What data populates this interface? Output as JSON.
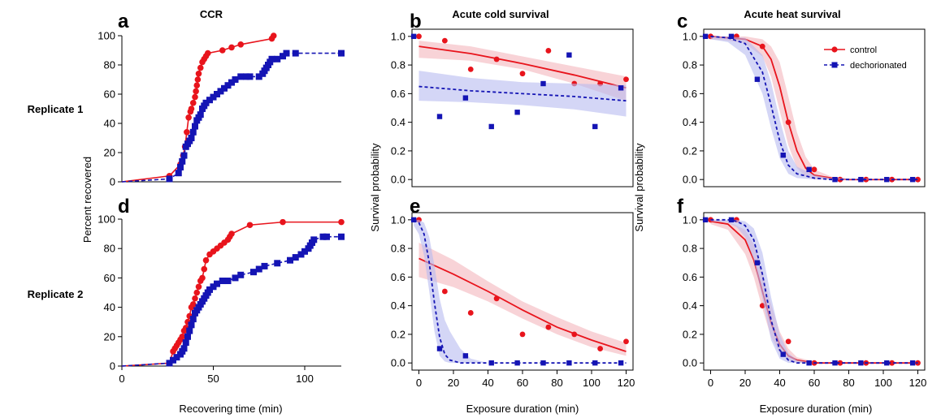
{
  "colors": {
    "control": "#e8141c",
    "dechorionated": "#1414b4",
    "control_band": "#f4b6bc",
    "dechorionated_band": "#b8bbf0"
  },
  "row_labels": [
    "Replicate 1",
    "Replicate 2"
  ],
  "shared_labels": {
    "ccr_ylabel": "Percent recovered",
    "ccr_xlabel": "Recovering time (min)",
    "surv_ylabel": "Survival probability",
    "surv_xlabel": "Exposure duration (min)"
  },
  "legend": {
    "placement": "top-right of panel c",
    "entries": [
      "control",
      "dechorionated"
    ]
  },
  "chart_data": [
    {
      "panel": "a",
      "type": "line",
      "title": "CCR",
      "xlabel": "",
      "ylabel": "Percent recovered",
      "xlim": [
        0,
        120
      ],
      "ylim": [
        0,
        100
      ],
      "xticks": [],
      "yticks": [
        0,
        20,
        40,
        60,
        80,
        100
      ],
      "series": [
        {
          "name": "control",
          "style": "solid",
          "x": [
            0,
            26,
            32,
            33.5,
            34.5,
            35.5,
            36.5,
            37.5,
            38,
            39,
            40,
            40.5,
            41,
            41.5,
            42,
            43,
            44,
            45,
            46,
            47,
            55,
            60,
            65,
            82,
            83
          ],
          "y": [
            0,
            4,
            12,
            18,
            24,
            34,
            44,
            48,
            50,
            54,
            58,
            62,
            66,
            70,
            74,
            78,
            82,
            84,
            86,
            88,
            90,
            92,
            94,
            98,
            100
          ]
        },
        {
          "name": "dechorionated",
          "style": "dashed",
          "x": [
            0,
            26,
            31,
            32,
            33,
            34,
            35,
            36,
            37,
            38,
            39,
            40,
            41,
            42,
            43,
            44,
            45,
            46,
            48,
            50,
            52,
            54,
            56,
            58,
            60,
            62,
            65,
            68,
            70,
            75,
            77,
            78,
            79,
            80,
            81,
            82,
            85,
            88,
            90,
            95,
            120
          ],
          "y": [
            0,
            2,
            6,
            10,
            14,
            18,
            24,
            26,
            28,
            30,
            34,
            38,
            42,
            44,
            46,
            50,
            52,
            54,
            56,
            58,
            60,
            62,
            64,
            66,
            68,
            70,
            72,
            72,
            72,
            72,
            74,
            76,
            78,
            80,
            82,
            84,
            84,
            86,
            88,
            88,
            88
          ]
        }
      ]
    },
    {
      "panel": "b",
      "type": "scatter",
      "title": "Acute cold survival",
      "xlabel": "",
      "ylabel": "",
      "xlim": [
        -4,
        124
      ],
      "ylim": [
        -0.05,
        1.05
      ],
      "xticks": [],
      "yticks": [
        0.0,
        0.2,
        0.4,
        0.6,
        0.8,
        1.0
      ],
      "series": [
        {
          "name": "control",
          "points_x": [
            0,
            15,
            30,
            45,
            60,
            75,
            90,
            105,
            120
          ],
          "points_y": [
            1.0,
            0.97,
            0.77,
            0.84,
            0.74,
            0.9,
            0.67,
            0.67,
            0.7
          ],
          "fit_x": [
            0,
            30,
            60,
            90,
            120
          ],
          "fit_y": [
            0.93,
            0.88,
            0.81,
            0.73,
            0.64
          ],
          "band_lo": [
            0.85,
            0.83,
            0.77,
            0.67,
            0.55
          ],
          "band_hi": [
            0.97,
            0.93,
            0.86,
            0.79,
            0.72
          ]
        },
        {
          "name": "dechorionated",
          "points_x": [
            -3,
            12,
            27,
            42,
            57,
            72,
            87,
            102,
            117
          ],
          "points_y": [
            1.0,
            0.44,
            0.57,
            0.37,
            0.47,
            0.67,
            0.87,
            0.37,
            0.64
          ],
          "fit_x": [
            0,
            30,
            60,
            90,
            120
          ],
          "fit_y": [
            0.65,
            0.62,
            0.6,
            0.58,
            0.55
          ],
          "band_lo": [
            0.55,
            0.54,
            0.52,
            0.49,
            0.44
          ],
          "band_hi": [
            0.76,
            0.71,
            0.68,
            0.67,
            0.66
          ]
        }
      ]
    },
    {
      "panel": "c",
      "type": "scatter",
      "title": "Acute heat survival",
      "xlabel": "",
      "ylabel": "",
      "xlim": [
        -4,
        124
      ],
      "ylim": [
        -0.05,
        1.05
      ],
      "xticks": [],
      "yticks": [
        0.0,
        0.2,
        0.4,
        0.6,
        0.8,
        1.0
      ],
      "series": [
        {
          "name": "control",
          "points_x": [
            0,
            15,
            30,
            45,
            60,
            75,
            90,
            105,
            120
          ],
          "points_y": [
            1.0,
            1.0,
            0.93,
            0.4,
            0.07,
            0.0,
            0.0,
            0.0,
            0.0
          ],
          "fit_x": [
            0,
            10,
            20,
            30,
            35,
            40,
            45,
            50,
            55,
            60,
            70,
            80,
            120
          ],
          "fit_y": [
            1.0,
            0.99,
            0.98,
            0.93,
            0.84,
            0.65,
            0.4,
            0.2,
            0.08,
            0.03,
            0.01,
            0.0,
            0.0
          ],
          "band_lo": [
            0.98,
            0.97,
            0.95,
            0.86,
            0.72,
            0.48,
            0.24,
            0.08,
            0.02,
            0.0,
            0.0,
            0.0,
            0.0
          ],
          "band_hi": [
            1.0,
            1.0,
            1.0,
            0.98,
            0.93,
            0.82,
            0.58,
            0.33,
            0.16,
            0.07,
            0.02,
            0.0,
            0.0
          ]
        },
        {
          "name": "dechorionated",
          "points_x": [
            -3,
            12,
            27,
            42,
            57,
            72,
            87,
            102,
            117
          ],
          "points_y": [
            1.0,
            1.0,
            0.7,
            0.17,
            0.07,
            0.0,
            0.0,
            0.0,
            0.0
          ],
          "fit_x": [
            0,
            10,
            20,
            30,
            35,
            40,
            45,
            50,
            60,
            70,
            120
          ],
          "fit_y": [
            1.0,
            0.99,
            0.95,
            0.75,
            0.52,
            0.27,
            0.1,
            0.04,
            0.01,
            0.0,
            0.0
          ],
          "band_lo": [
            0.98,
            0.96,
            0.87,
            0.6,
            0.36,
            0.15,
            0.04,
            0.01,
            0.0,
            0.0,
            0.0
          ],
          "band_hi": [
            1.0,
            1.0,
            0.99,
            0.87,
            0.68,
            0.42,
            0.2,
            0.09,
            0.03,
            0.01,
            0.0
          ]
        }
      ]
    },
    {
      "panel": "d",
      "type": "line",
      "title": "",
      "xlabel": "Recovering time (min)",
      "ylabel": "Percent recovered",
      "xlim": [
        0,
        120
      ],
      "ylim": [
        0,
        100
      ],
      "xticks": [
        0,
        50,
        100
      ],
      "yticks": [
        0,
        20,
        40,
        60,
        80,
        100
      ],
      "series": [
        {
          "name": "control",
          "style": "solid",
          "x": [
            0,
            26,
            28,
            29,
            30,
            31,
            32,
            33,
            34,
            35,
            36,
            37,
            38,
            39,
            40,
            41,
            42,
            43,
            44,
            45,
            46,
            48,
            50,
            52,
            54,
            56,
            58,
            59,
            60,
            70,
            88,
            120
          ],
          "y": [
            0,
            2,
            10,
            12,
            14,
            16,
            18,
            20,
            24,
            26,
            30,
            34,
            40,
            42,
            46,
            50,
            54,
            58,
            60,
            66,
            72,
            76,
            78,
            80,
            82,
            84,
            86,
            88,
            90,
            96,
            98,
            98
          ]
        },
        {
          "name": "dechorionated",
          "style": "dashed",
          "x": [
            0,
            26,
            28,
            30,
            32,
            33,
            34,
            35,
            36,
            37,
            38,
            39,
            40,
            41,
            42,
            43,
            44,
            45,
            46,
            47,
            48,
            50,
            52,
            55,
            58,
            62,
            65,
            72,
            75,
            78,
            85,
            92,
            95,
            98,
            100,
            102,
            103,
            104,
            105,
            110,
            112,
            120
          ],
          "y": [
            0,
            2,
            4,
            6,
            8,
            10,
            12,
            16,
            20,
            24,
            28,
            32,
            36,
            38,
            40,
            42,
            44,
            46,
            48,
            50,
            52,
            54,
            56,
            58,
            58,
            60,
            62,
            64,
            66,
            68,
            70,
            72,
            74,
            76,
            78,
            80,
            82,
            84,
            86,
            88,
            88,
            88
          ]
        }
      ]
    },
    {
      "panel": "e",
      "type": "scatter",
      "title": "",
      "xlabel": "Exposure duration (min)",
      "ylabel": "Survival probability",
      "xlim": [
        -4,
        124
      ],
      "ylim": [
        -0.05,
        1.05
      ],
      "xticks": [
        0,
        20,
        40,
        60,
        80,
        100,
        120
      ],
      "yticks": [
        0.0,
        0.2,
        0.4,
        0.6,
        0.8,
        1.0
      ],
      "series": [
        {
          "name": "control",
          "points_x": [
            0,
            15,
            30,
            45,
            60,
            75,
            90,
            105,
            120
          ],
          "points_y": [
            1.0,
            0.5,
            0.35,
            0.45,
            0.2,
            0.25,
            0.2,
            0.1,
            0.15
          ],
          "fit_x": [
            0,
            20,
            40,
            60,
            80,
            100,
            120
          ],
          "fit_y": [
            0.73,
            0.62,
            0.5,
            0.37,
            0.25,
            0.16,
            0.08
          ],
          "band_lo": [
            0.6,
            0.53,
            0.43,
            0.31,
            0.2,
            0.11,
            0.05
          ],
          "band_hi": [
            0.84,
            0.72,
            0.57,
            0.43,
            0.32,
            0.22,
            0.14
          ]
        },
        {
          "name": "dechorionated",
          "points_x": [
            -3,
            12,
            27,
            42,
            57,
            72,
            87,
            102,
            117
          ],
          "points_y": [
            1.0,
            0.1,
            0.05,
            0.0,
            0.0,
            0.0,
            0.0,
            0.0,
            0.0
          ],
          "fit_x": [
            -3,
            0,
            3,
            6,
            9,
            12,
            15,
            18,
            24,
            30,
            40,
            120
          ],
          "fit_y": [
            1.0,
            0.98,
            0.9,
            0.7,
            0.42,
            0.18,
            0.06,
            0.02,
            0.0,
            0.0,
            0.0,
            0.0
          ],
          "band_lo": [
            0.96,
            0.9,
            0.75,
            0.5,
            0.22,
            0.05,
            0.01,
            0.0,
            0.0,
            0.0,
            0.0,
            0.0
          ],
          "band_hi": [
            1.0,
            1.0,
            0.98,
            0.88,
            0.68,
            0.45,
            0.3,
            0.22,
            0.1,
            0.03,
            0.0,
            0.0
          ]
        }
      ]
    },
    {
      "panel": "f",
      "type": "scatter",
      "title": "",
      "xlabel": "Exposure duration (min)",
      "ylabel": "Survival probability",
      "xlim": [
        -4,
        124
      ],
      "ylim": [
        -0.05,
        1.05
      ],
      "xticks": [
        0,
        20,
        40,
        60,
        80,
        100,
        120
      ],
      "yticks": [
        0.0,
        0.2,
        0.4,
        0.6,
        0.8,
        1.0
      ],
      "series": [
        {
          "name": "control",
          "points_x": [
            0,
            15,
            30,
            45,
            60,
            75,
            90,
            105,
            120
          ],
          "points_y": [
            1.0,
            1.0,
            0.4,
            0.15,
            0.0,
            0.0,
            0.0,
            0.0,
            0.0
          ],
          "fit_x": [
            0,
            10,
            20,
            25,
            30,
            35,
            40,
            45,
            50,
            60,
            70,
            120
          ],
          "fit_y": [
            0.99,
            0.97,
            0.86,
            0.72,
            0.5,
            0.28,
            0.13,
            0.05,
            0.02,
            0.0,
            0.0,
            0.0
          ],
          "band_lo": [
            0.97,
            0.93,
            0.76,
            0.6,
            0.38,
            0.18,
            0.07,
            0.02,
            0.0,
            0.0,
            0.0,
            0.0
          ],
          "band_hi": [
            1.0,
            0.99,
            0.93,
            0.83,
            0.63,
            0.41,
            0.22,
            0.1,
            0.04,
            0.01,
            0.0,
            0.0
          ]
        },
        {
          "name": "dechorionated",
          "points_x": [
            -3,
            12,
            27,
            42,
            57,
            72,
            87,
            102,
            117
          ],
          "points_y": [
            1.0,
            1.0,
            0.7,
            0.06,
            0.0,
            0.0,
            0.0,
            0.0,
            0.0
          ],
          "fit_x": [
            0,
            10,
            15,
            20,
            25,
            30,
            35,
            40,
            45,
            50,
            60,
            120
          ],
          "fit_y": [
            1.0,
            1.0,
            0.99,
            0.96,
            0.86,
            0.62,
            0.3,
            0.09,
            0.02,
            0.0,
            0.0,
            0.0
          ],
          "band_lo": [
            0.99,
            0.98,
            0.95,
            0.88,
            0.72,
            0.45,
            0.16,
            0.03,
            0.0,
            0.0,
            0.0,
            0.0
          ],
          "band_hi": [
            1.0,
            1.0,
            1.0,
            0.99,
            0.94,
            0.77,
            0.46,
            0.2,
            0.07,
            0.02,
            0.0,
            0.0
          ]
        }
      ]
    }
  ]
}
